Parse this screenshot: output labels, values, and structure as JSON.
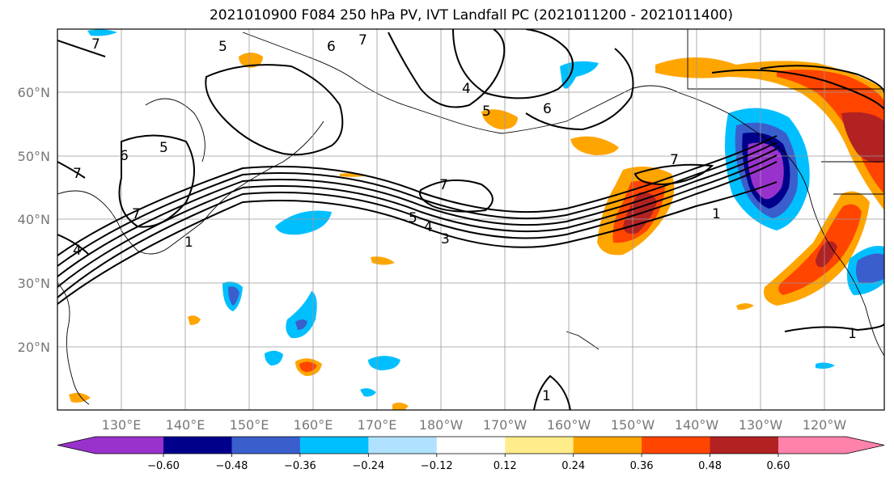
{
  "title": "2021010900 F084 250 hPa PV, IVT Landfall PC (2021011200 - 2021011400)",
  "lat_labels": [
    "60°N",
    "50°N",
    "40°N",
    "30°N",
    "20°N"
  ],
  "lon_labels": [
    "130°E",
    "140°E",
    "150°E",
    "160°E",
    "170°E",
    "180°W",
    "170°W",
    "160°W",
    "150°W",
    "140°W",
    "130°W",
    "120°W"
  ],
  "colorbar": {
    "levels": [
      "-0.60",
      "-0.48",
      "-0.36",
      "-0.24",
      "-0.12",
      "0.12",
      "0.24",
      "0.36",
      "0.48",
      "0.60"
    ],
    "colors": [
      "#9932CC",
      "#00008B",
      "#3A5FCD",
      "#00BFFF",
      "#B0E2FF",
      "#FFFFFF",
      "#FFEC8B",
      "#FFA500",
      "#FF4500",
      "#B22222",
      "#FF82AB"
    ]
  },
  "contour_labels": [
    "7",
    "5",
    "6",
    "7",
    "5",
    "4",
    "5",
    "6",
    "6",
    "7",
    "7",
    "5",
    "4",
    "3",
    "1",
    "1",
    "1",
    "4",
    "7",
    "1",
    "7"
  ]
}
